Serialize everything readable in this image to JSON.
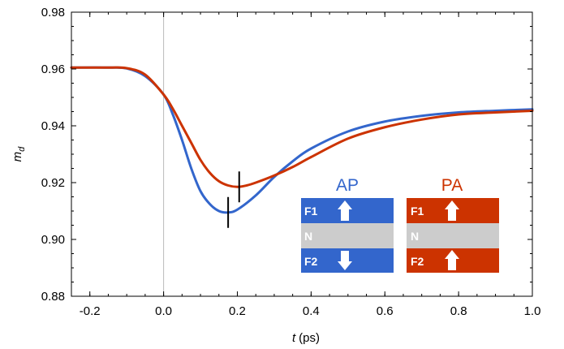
{
  "chart_data": {
    "type": "line",
    "xlabel_var": "t",
    "xlabel_unit": "(ps)",
    "ylabel_var": "m",
    "ylabel_sub": "d",
    "xlim": [
      -0.25,
      1.0
    ],
    "ylim": [
      0.88,
      0.98
    ],
    "xticks": [
      -0.2,
      0.0,
      0.2,
      0.4,
      0.6,
      0.8,
      1.0
    ],
    "xtick_labels": [
      "-0.2",
      "0.0",
      "0.2",
      "0.4",
      "0.6",
      "0.8",
      "1.0"
    ],
    "yticks": [
      0.88,
      0.9,
      0.92,
      0.94,
      0.96,
      0.98
    ],
    "ytick_labels": [
      "0.88",
      "0.90",
      "0.92",
      "0.94",
      "0.96",
      "0.98"
    ],
    "vline_x": 0.0,
    "series": [
      {
        "name": "AP",
        "color": "#3366cc",
        "x": [
          -0.25,
          -0.15,
          -0.1,
          -0.05,
          0.0,
          0.025,
          0.05,
          0.075,
          0.1,
          0.125,
          0.15,
          0.175,
          0.2,
          0.25,
          0.3,
          0.35,
          0.4,
          0.5,
          0.6,
          0.7,
          0.8,
          0.9,
          1.0
        ],
        "y": [
          0.9605,
          0.9605,
          0.9602,
          0.9575,
          0.951,
          0.944,
          0.935,
          0.925,
          0.917,
          0.9125,
          0.91,
          0.9095,
          0.9105,
          0.9155,
          0.922,
          0.9275,
          0.932,
          0.938,
          0.9415,
          0.9435,
          0.9447,
          0.9453,
          0.9458
        ]
      },
      {
        "name": "PA",
        "color": "#cc3300",
        "x": [
          -0.25,
          -0.15,
          -0.1,
          -0.05,
          0.0,
          0.025,
          0.05,
          0.075,
          0.1,
          0.125,
          0.15,
          0.175,
          0.2,
          0.225,
          0.25,
          0.3,
          0.35,
          0.4,
          0.5,
          0.6,
          0.7,
          0.8,
          0.9,
          1.0
        ],
        "y": [
          0.9605,
          0.9605,
          0.9603,
          0.958,
          0.951,
          0.946,
          0.94,
          0.934,
          0.928,
          0.9235,
          0.9205,
          0.919,
          0.9185,
          0.919,
          0.92,
          0.9225,
          0.9255,
          0.929,
          0.9355,
          0.9395,
          0.9422,
          0.944,
          0.9447,
          0.9453
        ]
      }
    ],
    "markers": [
      {
        "series": "AP",
        "x": 0.175,
        "y": 0.9095
      },
      {
        "series": "PA",
        "x": 0.205,
        "y": 0.9185
      }
    ]
  },
  "inset": {
    "ap": {
      "title": "AP",
      "title_color": "#3366cc",
      "layer_color": "#3366cc",
      "layers": [
        "F1",
        "N",
        "F2"
      ],
      "arrows": [
        "up",
        "",
        "down"
      ]
    },
    "pa": {
      "title": "PA",
      "title_color": "#cc3300",
      "layer_color": "#cc3300",
      "layers": [
        "F1",
        "N",
        "F2"
      ],
      "arrows": [
        "up",
        "",
        "up"
      ]
    },
    "spacer_color": "#cccccc"
  }
}
